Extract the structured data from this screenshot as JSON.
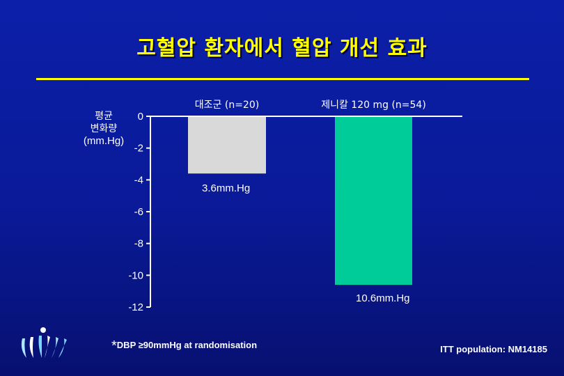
{
  "title": "고혈압 환자에서 혈압 개선 효과",
  "footnote": {
    "star": "*",
    "text": "DBP ≥90mmHg at randomisation"
  },
  "population": "ITT population: NM14185",
  "colors": {
    "background": "#0b1fa8",
    "title": "#ffff00",
    "control_bar": "#d9d9d9",
    "treatment_bar": "#00cc99",
    "axis": "#ffffff"
  },
  "logo": {
    "icon": "leaf-sprout-logo-icon"
  },
  "chart_data": {
    "type": "bar",
    "ylabel_lines": [
      "평균",
      "변화량",
      "(mm.Hg)"
    ],
    "ylim": [
      -12,
      0
    ],
    "yticks": [
      0,
      -2,
      -4,
      -6,
      -8,
      -10,
      -12
    ],
    "grid": false,
    "categories": [
      "대조군 (n=20)",
      "제니칼 120 mg (n=54)"
    ],
    "values": [
      -3.6,
      -10.6
    ],
    "value_labels": [
      "3.6mm.Hg",
      "10.6mm.Hg"
    ],
    "bar_colors": [
      "#d9d9d9",
      "#00cc99"
    ]
  }
}
